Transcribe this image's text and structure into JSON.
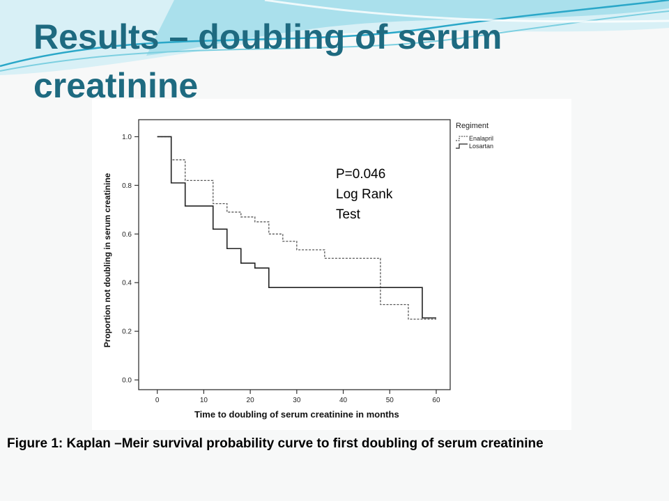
{
  "slide": {
    "title": "Results – doubling of serum creatinine",
    "caption": "Figure 1: Kaplan –Meir survival probability curve to first doubling of serum creatinine",
    "title_color": "#1e6a80",
    "wave_colors": [
      "#7ccfe0",
      "#2aa7c8",
      "#bfe7f0"
    ]
  },
  "annotation": {
    "lines": [
      "P=0.046",
      "Log Rank",
      "Test"
    ]
  },
  "chart_data": {
    "type": "line",
    "subtype": "kaplan-meier step",
    "xlabel": "Time to doubling of serum creatinine in months",
    "ylabel": "Proportion not doubling in serum creatinine",
    "xlim": [
      -4,
      63
    ],
    "ylim": [
      -0.04,
      1.07
    ],
    "x_ticks": [
      0,
      10,
      20,
      30,
      40,
      50,
      60
    ],
    "y_ticks": [
      0.0,
      0.2,
      0.4,
      0.6,
      0.8,
      1.0
    ],
    "y_tick_labels": [
      "0.0",
      "0.2",
      "0.4",
      "0.6",
      "0.8",
      "1.0"
    ],
    "grid": false,
    "legend": {
      "title": "Regiment",
      "position": "top-right outside plot"
    },
    "series": [
      {
        "name": "Enalapril",
        "style": "dashed",
        "color": "#555555",
        "x": [
          0,
          3,
          6,
          12,
          15,
          18,
          21,
          24,
          27,
          30,
          36,
          48,
          54,
          60
        ],
        "y": [
          1.0,
          0.905,
          0.82,
          0.725,
          0.69,
          0.67,
          0.65,
          0.6,
          0.57,
          0.535,
          0.5,
          0.31,
          0.25,
          0.25
        ]
      },
      {
        "name": "Losartan",
        "style": "solid",
        "color": "#222222",
        "x": [
          0,
          3,
          6,
          12,
          15,
          18,
          21,
          24,
          57,
          60
        ],
        "y": [
          1.0,
          0.81,
          0.715,
          0.62,
          0.54,
          0.48,
          0.46,
          0.38,
          0.255,
          0.255
        ]
      }
    ]
  }
}
